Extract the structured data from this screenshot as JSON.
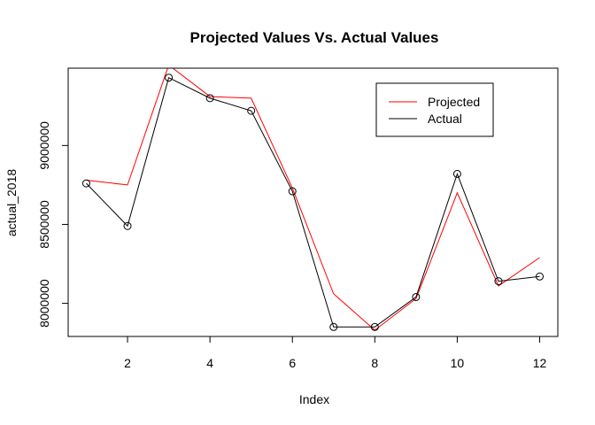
{
  "chart_data": {
    "type": "line",
    "title": "Projected Values Vs. Actual Values",
    "xlabel": "Index",
    "ylabel": "actual_2018",
    "x": [
      1,
      2,
      3,
      4,
      5,
      6,
      7,
      8,
      9,
      10,
      11,
      12
    ],
    "xlim": [
      0.56,
      12.44
    ],
    "ylim": [
      7790000,
      9490000
    ],
    "xticks": [
      2,
      4,
      6,
      8,
      10,
      12
    ],
    "xtick_labels": [
      "2",
      "4",
      "6",
      "8",
      "10",
      "12"
    ],
    "yticks": [
      8000000,
      8500000,
      9000000
    ],
    "ytick_labels": [
      "8000000",
      "8500000",
      "9000000"
    ],
    "grid": false,
    "legend_position": "top-right",
    "series": [
      {
        "name": "Projected",
        "color": "#ff0000",
        "markers": false,
        "values": [
          8780000,
          8750000,
          9510000,
          9310000,
          9300000,
          8730000,
          8060000,
          7830000,
          8030000,
          8700000,
          8110000,
          8290000
        ]
      },
      {
        "name": "Actual",
        "color": "#000000",
        "markers": true,
        "values": [
          8760000,
          8490000,
          9430000,
          9300000,
          9220000,
          8710000,
          7850000,
          7850000,
          8040000,
          8820000,
          8140000,
          8170000
        ]
      }
    ]
  }
}
